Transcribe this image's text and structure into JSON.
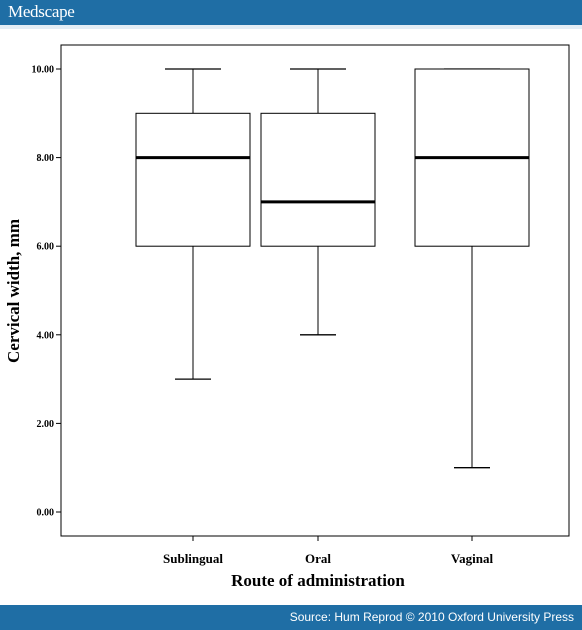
{
  "header": {
    "brand": "Medscape"
  },
  "footer": {
    "source": "Source: Hum Reprod © 2010 Oxford University Press"
  },
  "colors": {
    "bar": "#1f6ea5"
  },
  "chart_data": {
    "type": "boxplot",
    "xlabel": "Route of administration",
    "ylabel": "Cervical width, mm",
    "ylim": [
      0,
      10
    ],
    "yticks": [
      "0.00",
      "2.00",
      "4.00",
      "6.00",
      "8.00",
      "10.00"
    ],
    "categories": [
      "Sublingual",
      "Oral",
      "Vaginal"
    ],
    "boxes": [
      {
        "category": "Sublingual",
        "min": 3,
        "q1": 6,
        "median": 8,
        "q3": 9,
        "max": 10
      },
      {
        "category": "Oral",
        "min": 4,
        "q1": 6,
        "median": 7,
        "q3": 9,
        "max": 10
      },
      {
        "category": "Vaginal",
        "min": 1,
        "q1": 6,
        "median": 8,
        "q3": 10,
        "max": 10
      }
    ],
    "grid": false,
    "legend": "none"
  }
}
